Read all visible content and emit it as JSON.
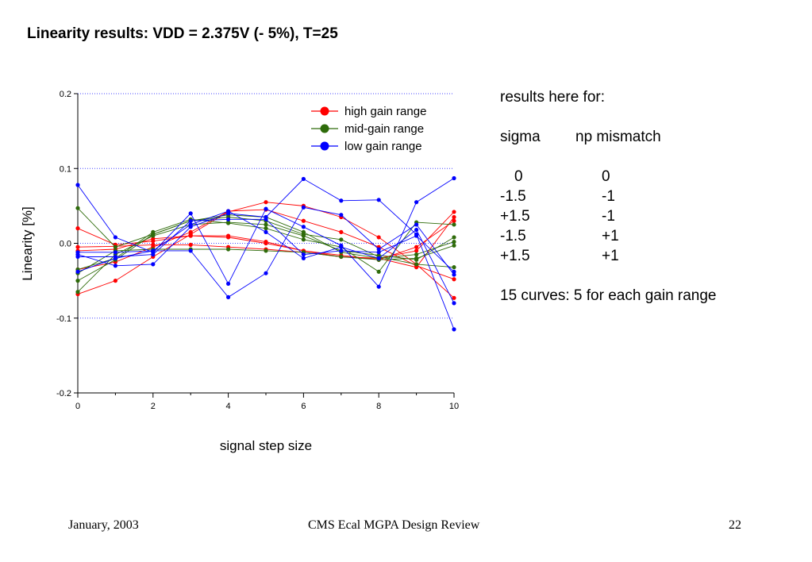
{
  "title": "Linearity results: VDD = 2.375V (- 5%), T=25",
  "notes": {
    "heading": "results here for:",
    "col1_header": "sigma",
    "col2_header": "np mismatch",
    "rows": [
      {
        "sigma": "0",
        "np": "0"
      },
      {
        "sigma": "-1.5",
        "np": "-1"
      },
      {
        "sigma": "+1.5",
        "np": "-1"
      },
      {
        "sigma": "-1.5",
        "np": "+1"
      },
      {
        "sigma": "+1.5",
        "np": "+1"
      }
    ],
    "summary": "15 curves: 5 for each gain range"
  },
  "footer": {
    "date": "January, 2003",
    "center": "CMS Ecal MGPA Design Review",
    "page": "22"
  },
  "chart_data": {
    "type": "line",
    "title": "",
    "xlabel": "signal step size",
    "ylabel": "Linearity [%]",
    "xlim": [
      0,
      10
    ],
    "ylim": [
      -0.2,
      0.2
    ],
    "x_ticks": [
      0,
      2,
      4,
      6,
      8,
      10
    ],
    "y_ticks": [
      0.2,
      0.1,
      0.0,
      -0.1,
      -0.2
    ],
    "y_tick_labels": [
      "0.2",
      "0.1",
      "0.0",
      "-0.1",
      "-0.2"
    ],
    "grid": "horizontal dotted",
    "legend_position": "top-right",
    "x": [
      0,
      1,
      2,
      3,
      4,
      5,
      6,
      7,
      8,
      9,
      10
    ],
    "series": [
      {
        "name": "high gain range",
        "group": "high",
        "color": "#ff0000",
        "values": [
          0.02,
          -0.002,
          0.003,
          0.01,
          0.01,
          0.002,
          -0.01,
          -0.018,
          -0.02,
          -0.01,
          0.042
        ]
      },
      {
        "group": "high",
        "color": "#ff0000",
        "values": [
          -0.068,
          -0.05,
          -0.018,
          0.012,
          0.042,
          0.055,
          0.05,
          0.035,
          0.008,
          -0.028,
          -0.073
        ]
      },
      {
        "group": "high",
        "color": "#ff0000",
        "values": [
          -0.035,
          -0.025,
          -0.005,
          0.015,
          0.043,
          0.045,
          0.03,
          0.015,
          -0.005,
          -0.03,
          -0.048
        ]
      },
      {
        "group": "high",
        "color": "#ff0000",
        "values": [
          -0.005,
          -0.004,
          -0.002,
          -0.002,
          -0.005,
          -0.008,
          -0.012,
          -0.018,
          -0.02,
          -0.032,
          0.035
        ]
      },
      {
        "group": "high",
        "color": "#ff0000",
        "values": [
          -0.01,
          -0.008,
          0.006,
          0.01,
          0.008,
          0.0,
          -0.01,
          -0.016,
          -0.022,
          -0.005,
          0.03
        ]
      },
      {
        "name": "mid-gain range",
        "group": "mid",
        "color": "#2e6b0a",
        "values": [
          0.047,
          -0.005,
          0.012,
          0.03,
          0.035,
          0.03,
          0.012,
          0.005,
          -0.018,
          -0.028,
          -0.032
        ]
      },
      {
        "group": "mid",
        "color": "#2e6b0a",
        "values": [
          -0.035,
          -0.02,
          0.015,
          0.032,
          0.027,
          0.02,
          0.005,
          -0.005,
          -0.038,
          0.028,
          0.025
        ]
      },
      {
        "group": "mid",
        "color": "#2e6b0a",
        "values": [
          -0.065,
          -0.015,
          0.01,
          0.025,
          0.028,
          0.025,
          0.01,
          -0.01,
          -0.016,
          -0.022,
          0.008
        ]
      },
      {
        "group": "mid",
        "color": "#2e6b0a",
        "values": [
          -0.05,
          -0.022,
          0.012,
          0.03,
          0.038,
          0.035,
          0.015,
          -0.012,
          -0.02,
          -0.015,
          0.002
        ]
      },
      {
        "group": "mid",
        "color": "#2e6b0a",
        "values": [
          -0.04,
          -0.01,
          -0.008,
          -0.008,
          -0.008,
          -0.01,
          -0.012,
          -0.018,
          -0.022,
          -0.02,
          -0.003
        ]
      },
      {
        "name": "low gain range",
        "group": "low",
        "color": "#0000ff",
        "values": [
          0.078,
          0.008,
          -0.012,
          0.04,
          -0.054,
          0.046,
          0.022,
          -0.003,
          -0.058,
          0.055,
          0.087
        ]
      },
      {
        "group": "low",
        "color": "#0000ff",
        "values": [
          -0.015,
          -0.03,
          -0.028,
          0.022,
          0.04,
          0.035,
          0.086,
          0.057,
          0.058,
          0.012,
          -0.115
        ]
      },
      {
        "group": "low",
        "color": "#0000ff",
        "values": [
          -0.012,
          -0.012,
          -0.01,
          0.025,
          0.043,
          0.015,
          -0.02,
          -0.005,
          -0.02,
          0.018,
          -0.08
        ]
      },
      {
        "group": "low",
        "color": "#0000ff",
        "values": [
          -0.038,
          -0.02,
          -0.01,
          -0.01,
          -0.072,
          -0.04,
          0.048,
          0.038,
          -0.008,
          0.025,
          -0.042
        ]
      },
      {
        "group": "low",
        "color": "#0000ff",
        "values": [
          -0.018,
          -0.018,
          -0.015,
          0.03,
          0.032,
          0.032,
          -0.015,
          -0.01,
          -0.012,
          0.01,
          -0.038
        ]
      }
    ]
  }
}
